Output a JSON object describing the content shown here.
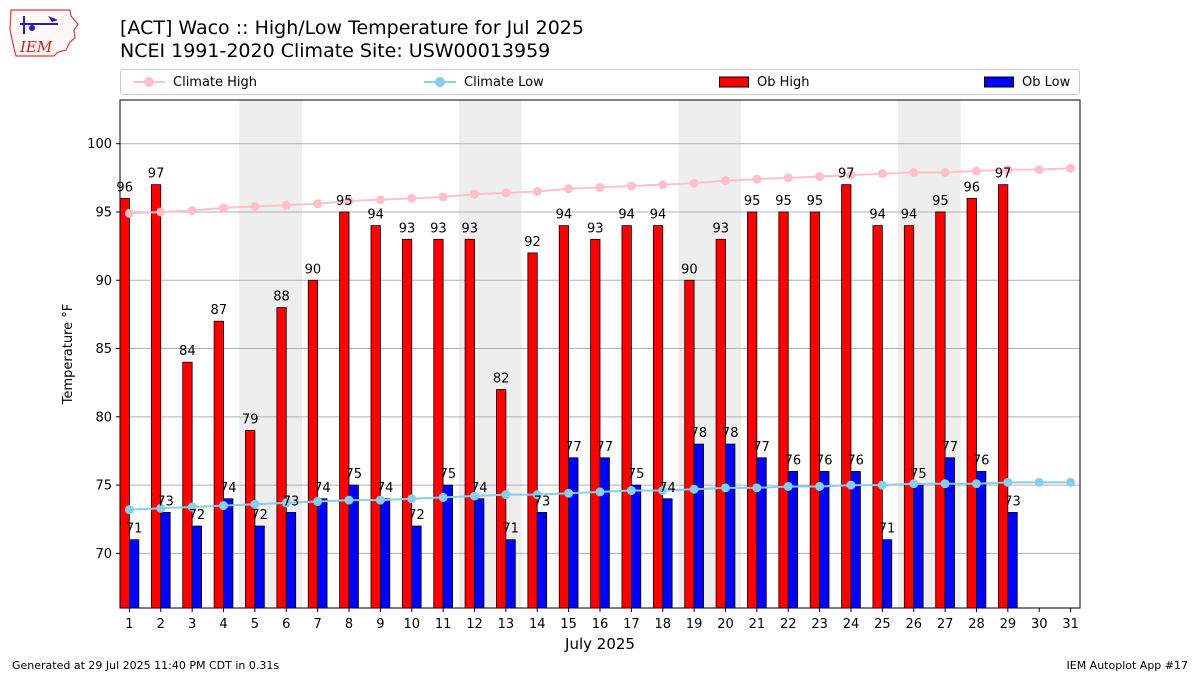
{
  "logo_text": "IEM",
  "title_line1": "[ACT] Waco :: High/Low Temperature for Jul 2025",
  "title_line2": "NCEI 1991-2020 Climate Site: USW00013959",
  "legend": {
    "climate_high": "Climate High",
    "climate_low": "Climate Low",
    "ob_high": "Ob High",
    "ob_low": "Ob Low"
  },
  "colors": {
    "ob_high": "#ff0000",
    "ob_low": "#0000ff",
    "climate_high": "#ffc0cb",
    "climate_low": "#87ceeb",
    "weekend_shade": "#eeeeee",
    "grid": "#b0b0b0"
  },
  "footer_left": "Generated at 29 Jul 2025 11:40 PM CDT in 0.31s",
  "footer_right": "IEM Autoplot App #17",
  "chart_data": {
    "type": "bar",
    "xlabel": "July 2025",
    "ylabel": "Temperature °F",
    "ylim": [
      66,
      103.2
    ],
    "yticks": [
      70,
      75,
      80,
      85,
      90,
      95,
      100
    ],
    "days": [
      1,
      2,
      3,
      4,
      5,
      6,
      7,
      8,
      9,
      10,
      11,
      12,
      13,
      14,
      15,
      16,
      17,
      18,
      19,
      20,
      21,
      22,
      23,
      24,
      25,
      26,
      27,
      28,
      29,
      30,
      31
    ],
    "weekend_shading": [
      [
        5,
        6
      ],
      [
        12,
        13
      ],
      [
        19,
        20
      ],
      [
        26,
        27
      ]
    ],
    "series": [
      {
        "name": "Ob High",
        "type": "bar",
        "values": [
          96,
          97,
          84,
          87,
          79,
          88,
          90,
          95,
          94,
          93,
          93,
          93,
          82,
          92,
          94,
          93,
          94,
          94,
          90,
          93,
          95,
          95,
          95,
          97,
          94,
          94,
          95,
          96,
          97,
          null,
          null
        ]
      },
      {
        "name": "Ob Low",
        "type": "bar",
        "values": [
          71,
          73,
          72,
          74,
          72,
          73,
          74,
          75,
          74,
          72,
          75,
          74,
          71,
          73,
          77,
          77,
          75,
          74,
          78,
          78,
          77,
          76,
          76,
          76,
          71,
          75,
          77,
          76,
          73,
          null,
          null
        ]
      },
      {
        "name": "Climate High",
        "type": "line",
        "values": [
          94.9,
          95.0,
          95.1,
          95.3,
          95.4,
          95.5,
          95.6,
          95.8,
          95.9,
          96.0,
          96.1,
          96.3,
          96.4,
          96.5,
          96.7,
          96.8,
          96.9,
          97.0,
          97.1,
          97.3,
          97.4,
          97.5,
          97.6,
          97.7,
          97.8,
          97.9,
          97.9,
          98.0,
          98.1,
          98.1,
          98.2
        ]
      },
      {
        "name": "Climate Low",
        "type": "line",
        "values": [
          73.2,
          73.3,
          73.4,
          73.5,
          73.6,
          73.7,
          73.8,
          73.9,
          73.9,
          74.0,
          74.1,
          74.2,
          74.3,
          74.3,
          74.4,
          74.5,
          74.6,
          74.6,
          74.7,
          74.8,
          74.8,
          74.9,
          74.9,
          75.0,
          75.0,
          75.1,
          75.1,
          75.1,
          75.2,
          75.2,
          75.2
        ]
      }
    ]
  }
}
